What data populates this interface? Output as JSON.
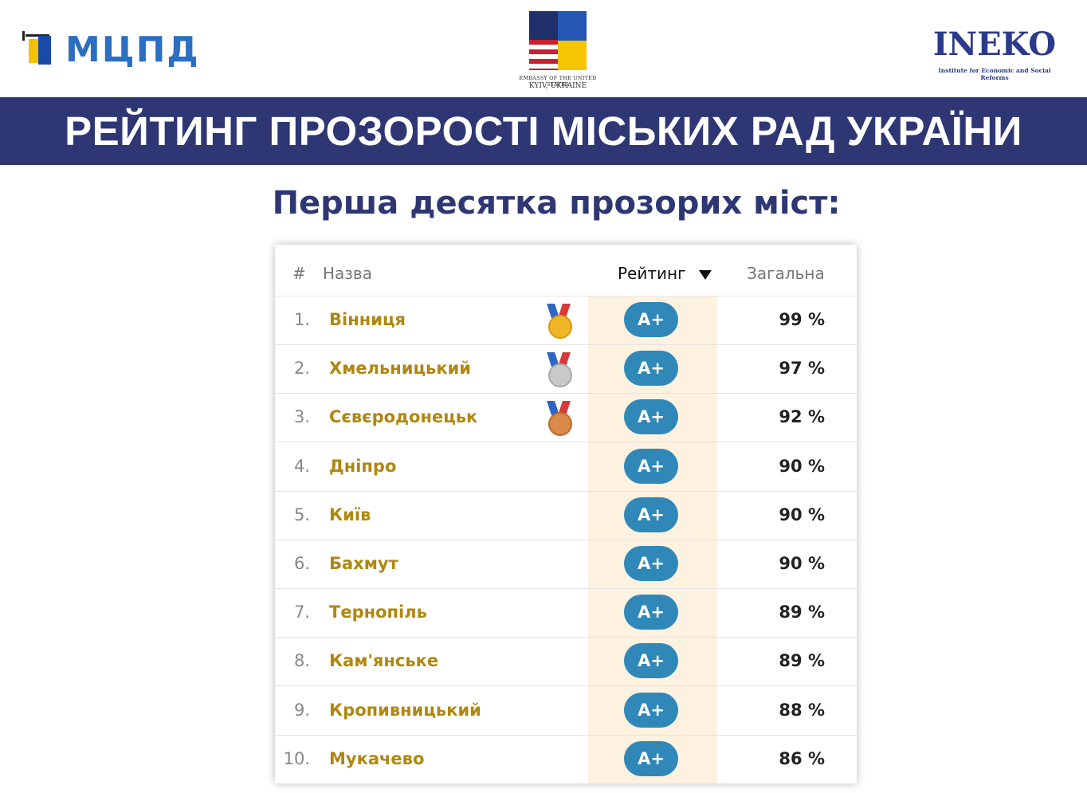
{
  "header": {
    "left_logo_text": "МЦПД",
    "emblem_caption_line1": "EMBASSY OF THE UNITED STATES",
    "emblem_caption_line2": "KYIV, UKRAINE",
    "right_logo_text": "INEKO",
    "right_logo_subtitle": "Institute for Economic and Social Reforms"
  },
  "banner_title": "РЕЙТИНГ ПРОЗОРОСТІ МІСЬКИХ РАД УКРАЇНИ",
  "subtitle": "Перша десятка прозорих міст:",
  "table": {
    "columns": {
      "rank": "#",
      "name": "Назва",
      "rating": "Рейтинг",
      "total": "Загальна"
    },
    "rows": [
      {
        "rank": "1.",
        "city": "Вінниця",
        "rating": "A+",
        "total": "99 %",
        "medal": "gold"
      },
      {
        "rank": "2.",
        "city": "Хмельницький",
        "rating": "A+",
        "total": "97 %",
        "medal": "silver"
      },
      {
        "rank": "3.",
        "city": "Сєвєродонецьк",
        "rating": "A+",
        "total": "92 %",
        "medal": "bronze"
      },
      {
        "rank": "4.",
        "city": "Дніпро",
        "rating": "A+",
        "total": "90 %"
      },
      {
        "rank": "5.",
        "city": "Київ",
        "rating": "A+",
        "total": "90 %"
      },
      {
        "rank": "6.",
        "city": "Бахмут",
        "rating": "A+",
        "total": "90 %"
      },
      {
        "rank": "7.",
        "city": "Тернопіль",
        "rating": "A+",
        "total": "89 %"
      },
      {
        "rank": "8.",
        "city": "Кам'янське",
        "rating": "A+",
        "total": "89 %"
      },
      {
        "rank": "9.",
        "city": "Кропивницький",
        "rating": "A+",
        "total": "88 %"
      },
      {
        "rank": "10.",
        "city": "Мукачево",
        "rating": "A+",
        "total": "86 %"
      }
    ]
  },
  "colors": {
    "banner": "#2e3774",
    "city_text": "#b0870f",
    "badge": "#2f88b8",
    "rating_column_highlight": "#fdf1e0"
  }
}
